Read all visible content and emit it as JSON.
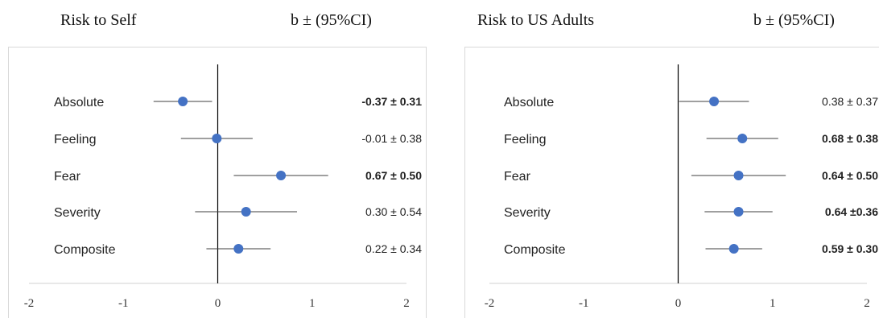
{
  "chart_data": [
    {
      "type": "forest",
      "title": "Risk to Self",
      "value_header": "b ± (95%CI)",
      "categories": [
        "Absolute",
        "Feeling",
        "Fear",
        "Severity",
        "Composite"
      ],
      "series": [
        {
          "values": [
            -0.37,
            -0.01,
            0.67,
            0.3,
            0.22
          ],
          "ci": [
            0.31,
            0.38,
            0.5,
            0.54,
            0.34
          ]
        }
      ],
      "value_labels": [
        "-0.37 ± 0.31",
        "-0.01 ± 0.38",
        "0.67 ± 0.50",
        "0.30 ± 0.54",
        "0.22 ± 0.34"
      ],
      "value_labels_bold": [
        true,
        false,
        true,
        false,
        false
      ],
      "xlim": [
        -2,
        2
      ],
      "xticks": [
        "-2",
        "-1",
        "0",
        "1",
        "2"
      ],
      "grid": false,
      "point_color": "#4472c4"
    },
    {
      "type": "forest",
      "title": "Risk to US Adults",
      "value_header": "b ± (95%CI)",
      "categories": [
        "Absolute",
        "Feeling",
        "Fear",
        "Severity",
        "Composite"
      ],
      "series": [
        {
          "values": [
            0.38,
            0.68,
            0.64,
            0.64,
            0.59
          ],
          "ci": [
            0.37,
            0.38,
            0.5,
            0.36,
            0.3
          ]
        }
      ],
      "value_labels": [
        "0.38 ± 0.37",
        "0.68 ± 0.38",
        "0.64 ± 0.50",
        "0.64 ±0.36",
        "0.59 ± 0.30"
      ],
      "value_labels_bold": [
        false,
        true,
        true,
        true,
        true
      ],
      "xlim": [
        -2,
        2
      ],
      "xticks": [
        "-2",
        "-1",
        "0",
        "1",
        "2"
      ],
      "grid": false,
      "point_color": "#4472c4"
    }
  ]
}
